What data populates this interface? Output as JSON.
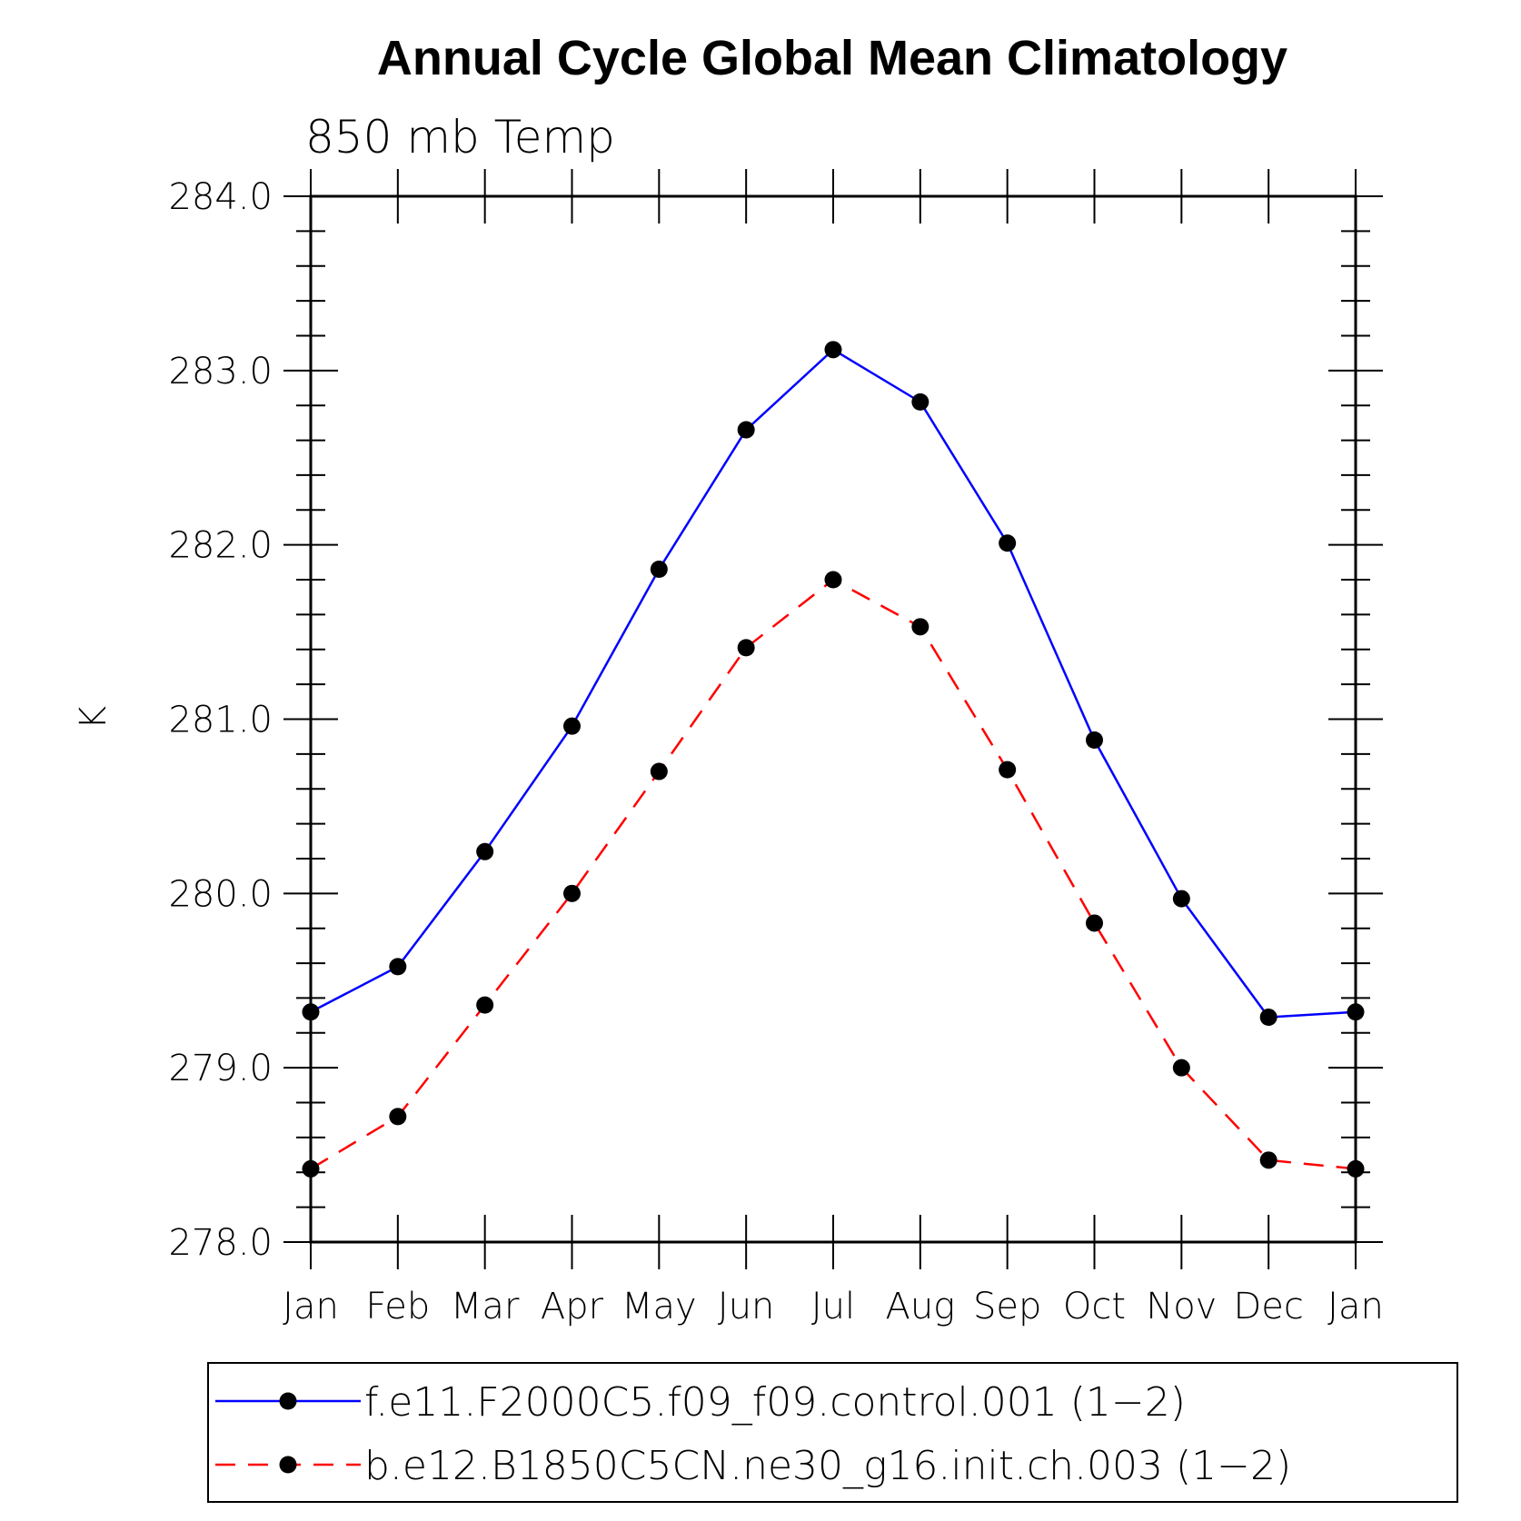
{
  "chart_data": {
    "type": "line",
    "title": "Annual Cycle Global Mean Climatology",
    "subtitle": "850 mb Temp",
    "ylabel": "K",
    "xlabel": "",
    "ylim": [
      278.0,
      284.0
    ],
    "yticks": [
      "278.0",
      "279.0",
      "280.0",
      "281.0",
      "282.0",
      "283.0",
      "284.0"
    ],
    "categories": [
      "Jan",
      "Feb",
      "Mar",
      "Apr",
      "May",
      "Jun",
      "Jul",
      "Aug",
      "Sep",
      "Oct",
      "Nov",
      "Dec",
      "Jan"
    ],
    "grid": false,
    "legend_position": "bottom",
    "series": [
      {
        "name": "f.e11.F2000C5.f09_f09.control.001 (1−2)",
        "color": "#0000ff",
        "dash": "solid",
        "values": [
          279.32,
          279.58,
          280.24,
          280.96,
          281.86,
          282.66,
          283.12,
          282.82,
          282.01,
          280.88,
          279.97,
          279.29,
          279.32
        ]
      },
      {
        "name": "b.e12.B1850C5CN.ne30_g16.init.ch.003 (1−2)",
        "color": "#ff0000",
        "dash": "dashed",
        "values": [
          278.42,
          278.72,
          279.36,
          280.0,
          280.7,
          281.41,
          281.8,
          281.53,
          280.71,
          279.83,
          279.0,
          278.47,
          278.42
        ]
      }
    ]
  }
}
